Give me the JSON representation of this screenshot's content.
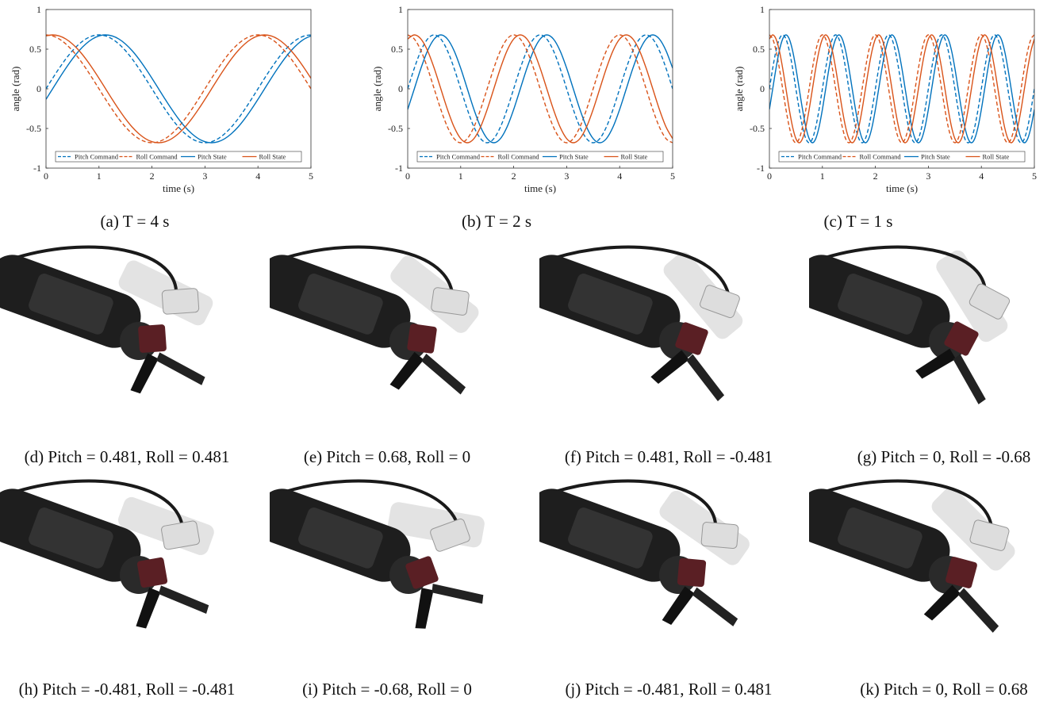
{
  "chart_data": [
    {
      "type": "line",
      "caption": "(a) T = 4 s",
      "xlabel": "time (s)",
      "ylabel": "angle (rad)",
      "xlim": [
        0,
        5
      ],
      "ylim": [
        -1,
        1
      ],
      "xticks": [
        0,
        1,
        2,
        3,
        4,
        5
      ],
      "yticks": [
        -1,
        -0.5,
        0,
        0.5,
        1
      ],
      "x": [
        0,
        0.125,
        0.25,
        0.375,
        0.5,
        0.625,
        0.75,
        0.875,
        1,
        1.125,
        1.25,
        1.375,
        1.5,
        1.625,
        1.75,
        1.875,
        2,
        2.125,
        2.25,
        2.375,
        2.5,
        2.625,
        2.75,
        2.875,
        3,
        3.125,
        3.25,
        3.375,
        3.5,
        3.625,
        3.75,
        3.875,
        4,
        4.125,
        4.25,
        4.375,
        4.5,
        4.625,
        4.75,
        4.875,
        5
      ],
      "series": [
        {
          "name": "Pitch Command",
          "color": "#0072bd",
          "dash": true,
          "values": [
            0,
            0.133,
            0.26,
            0.378,
            0.481,
            0.565,
            0.628,
            0.667,
            0.68,
            0.667,
            0.628,
            0.565,
            0.481,
            0.378,
            0.26,
            0.133,
            0,
            -0.133,
            -0.26,
            -0.378,
            -0.481,
            -0.565,
            -0.628,
            -0.667,
            -0.68,
            -0.667,
            -0.628,
            -0.565,
            -0.481,
            -0.378,
            -0.26,
            -0.133,
            0,
            0.133,
            0.26,
            0.378,
            0.481,
            0.565,
            0.628,
            0.667,
            0.68
          ]
        },
        {
          "name": "Roll Command",
          "color": "#d95319",
          "dash": true,
          "values": [
            0.68,
            0.667,
            0.628,
            0.565,
            0.481,
            0.378,
            0.26,
            0.133,
            0,
            -0.133,
            -0.26,
            -0.378,
            -0.481,
            -0.565,
            -0.628,
            -0.667,
            -0.68,
            -0.667,
            -0.628,
            -0.565,
            -0.481,
            -0.378,
            -0.26,
            -0.133,
            0,
            0.133,
            0.26,
            0.378,
            0.481,
            0.565,
            0.628,
            0.667,
            0.68,
            0.667,
            0.628,
            0.565,
            0.481,
            0.378,
            0.26,
            0.133,
            0
          ]
        },
        {
          "name": "Pitch State",
          "color": "#0072bd",
          "dash": false,
          "values": [
            -0.133,
            0,
            0.133,
            0.26,
            0.378,
            0.481,
            0.565,
            0.628,
            0.667,
            0.68,
            0.667,
            0.628,
            0.565,
            0.481,
            0.378,
            0.26,
            0.133,
            0,
            -0.133,
            -0.26,
            -0.378,
            -0.481,
            -0.565,
            -0.628,
            -0.667,
            -0.68,
            -0.667,
            -0.628,
            -0.565,
            -0.481,
            -0.378,
            -0.26,
            -0.133,
            0,
            0.133,
            0.26,
            0.378,
            0.481,
            0.565,
            0.628,
            0.667
          ]
        },
        {
          "name": "Roll State",
          "color": "#d95319",
          "dash": false,
          "values": [
            0.667,
            0.68,
            0.667,
            0.628,
            0.565,
            0.481,
            0.378,
            0.26,
            0.133,
            0,
            -0.133,
            -0.26,
            -0.378,
            -0.481,
            -0.565,
            -0.628,
            -0.667,
            -0.68,
            -0.667,
            -0.628,
            -0.565,
            -0.481,
            -0.378,
            -0.26,
            -0.133,
            0,
            0.133,
            0.26,
            0.378,
            0.481,
            0.565,
            0.628,
            0.667,
            0.68,
            0.667,
            0.628,
            0.565,
            0.481,
            0.378,
            0.26,
            0.133
          ]
        }
      ]
    },
    {
      "type": "line",
      "caption": "(b) T = 2 s",
      "xlabel": "time (s)",
      "ylabel": "angle (rad)",
      "xlim": [
        0,
        5
      ],
      "ylim": [
        -1,
        1
      ],
      "xticks": [
        0,
        1,
        2,
        3,
        4,
        5
      ],
      "yticks": [
        -1,
        -0.5,
        0,
        0.5,
        1
      ],
      "x": [
        0,
        0.125,
        0.25,
        0.375,
        0.5,
        0.625,
        0.75,
        0.875,
        1,
        1.125,
        1.25,
        1.375,
        1.5,
        1.625,
        1.75,
        1.875,
        2,
        2.125,
        2.25,
        2.375,
        2.5,
        2.625,
        2.75,
        2.875,
        3,
        3.125,
        3.25,
        3.375,
        3.5,
        3.625,
        3.75,
        3.875,
        4,
        4.125,
        4.25,
        4.375,
        4.5,
        4.625,
        4.75,
        4.875,
        5
      ],
      "series": [
        {
          "name": "Pitch Command",
          "color": "#0072bd",
          "dash": true,
          "values": [
            0,
            0.26,
            0.481,
            0.628,
            0.68,
            0.628,
            0.481,
            0.26,
            0,
            -0.26,
            -0.481,
            -0.628,
            -0.68,
            -0.628,
            -0.481,
            -0.26,
            0,
            0.26,
            0.481,
            0.628,
            0.68,
            0.628,
            0.481,
            0.26,
            0,
            -0.26,
            -0.481,
            -0.628,
            -0.68,
            -0.628,
            -0.481,
            -0.26,
            0,
            0.26,
            0.481,
            0.628,
            0.68,
            0.628,
            0.481,
            0.26,
            0
          ]
        },
        {
          "name": "Roll Command",
          "color": "#d95319",
          "dash": true,
          "values": [
            0.68,
            0.628,
            0.481,
            0.26,
            0,
            -0.26,
            -0.481,
            -0.628,
            -0.68,
            -0.628,
            -0.481,
            -0.26,
            0,
            0.26,
            0.481,
            0.628,
            0.68,
            0.628,
            0.481,
            0.26,
            0,
            -0.26,
            -0.481,
            -0.628,
            -0.68,
            -0.628,
            -0.481,
            -0.26,
            0,
            0.26,
            0.481,
            0.628,
            0.68,
            0.628,
            0.481,
            0.26,
            0,
            -0.26,
            -0.481,
            -0.628,
            -0.68
          ]
        },
        {
          "name": "Pitch State",
          "color": "#0072bd",
          "dash": false,
          "values": [
            -0.26,
            0,
            0.26,
            0.481,
            0.628,
            0.68,
            0.628,
            0.481,
            0.26,
            0,
            -0.26,
            -0.481,
            -0.628,
            -0.68,
            -0.628,
            -0.481,
            -0.26,
            0,
            0.26,
            0.481,
            0.628,
            0.68,
            0.628,
            0.481,
            0.26,
            0,
            -0.26,
            -0.481,
            -0.628,
            -0.68,
            -0.628,
            -0.481,
            -0.26,
            0,
            0.26,
            0.481,
            0.628,
            0.68,
            0.628,
            0.481,
            0.26
          ]
        },
        {
          "name": "Roll State",
          "color": "#d95319",
          "dash": false,
          "values": [
            0.628,
            0.68,
            0.628,
            0.481,
            0.26,
            0,
            -0.26,
            -0.481,
            -0.628,
            -0.68,
            -0.628,
            -0.481,
            -0.26,
            0,
            0.26,
            0.481,
            0.628,
            0.68,
            0.628,
            0.481,
            0.26,
            0,
            -0.26,
            -0.481,
            -0.628,
            -0.68,
            -0.628,
            -0.481,
            -0.26,
            0,
            0.26,
            0.481,
            0.628,
            0.68,
            0.628,
            0.481,
            0.26,
            0,
            -0.26,
            -0.481,
            -0.628
          ]
        }
      ]
    },
    {
      "type": "line",
      "caption": "(c) T = 1 s",
      "xlabel": "time (s)",
      "ylabel": "angle (rad)",
      "xlim": [
        0,
        5
      ],
      "ylim": [
        -1,
        1
      ],
      "xticks": [
        0,
        1,
        2,
        3,
        4,
        5
      ],
      "yticks": [
        -1,
        -0.5,
        0,
        0.5,
        1
      ],
      "x": [
        0,
        0.0625,
        0.125,
        0.1875,
        0.25,
        0.3125,
        0.375,
        0.4375,
        0.5,
        0.5625,
        0.625,
        0.6875,
        0.75,
        0.8125,
        0.875,
        0.9375,
        1,
        1.0625,
        1.125,
        1.1875,
        1.25,
        1.3125,
        1.375,
        1.4375,
        1.5,
        1.5625,
        1.625,
        1.6875,
        1.75,
        1.8125,
        1.875,
        1.9375,
        2,
        2.0625,
        2.125,
        2.1875,
        2.25,
        2.3125,
        2.375,
        2.4375,
        2.5,
        2.5625,
        2.625,
        2.6875,
        2.75,
        2.8125,
        2.875,
        2.9375,
        3,
        3.0625,
        3.125,
        3.1875,
        3.25,
        3.3125,
        3.375,
        3.4375,
        3.5,
        3.5625,
        3.625,
        3.6875,
        3.75,
        3.8125,
        3.875,
        3.9375,
        4,
        4.0625,
        4.125,
        4.1875,
        4.25,
        4.3125,
        4.375,
        4.4375,
        4.5,
        4.5625,
        4.625,
        4.6875,
        4.75,
        4.8125,
        4.875,
        4.9375,
        5
      ],
      "series": [
        {
          "name": "Pitch Command",
          "color": "#0072bd",
          "dash": true,
          "values": [
            0,
            0.26,
            0.481,
            0.628,
            0.68,
            0.628,
            0.481,
            0.26,
            0,
            -0.26,
            -0.481,
            -0.628,
            -0.68,
            -0.628,
            -0.481,
            -0.26,
            0,
            0.26,
            0.481,
            0.628,
            0.68,
            0.628,
            0.481,
            0.26,
            0,
            -0.26,
            -0.481,
            -0.628,
            -0.68,
            -0.628,
            -0.481,
            -0.26,
            0,
            0.26,
            0.481,
            0.628,
            0.68,
            0.628,
            0.481,
            0.26,
            0,
            -0.26,
            -0.481,
            -0.628,
            -0.68,
            -0.628,
            -0.481,
            -0.26,
            0,
            0.26,
            0.481,
            0.628,
            0.68,
            0.628,
            0.481,
            0.26,
            0,
            -0.26,
            -0.481,
            -0.628,
            -0.68,
            -0.628,
            -0.481,
            -0.26,
            0,
            0.26,
            0.481,
            0.628,
            0.68,
            0.628,
            0.481,
            0.26,
            0,
            -0.26,
            -0.481,
            -0.628,
            -0.68,
            -0.628,
            -0.481,
            -0.26,
            0
          ]
        },
        {
          "name": "Roll Command",
          "color": "#d95319",
          "dash": true,
          "values": [
            0.68,
            0.628,
            0.481,
            0.26,
            0,
            -0.26,
            -0.481,
            -0.628,
            -0.68,
            -0.628,
            -0.481,
            -0.26,
            0,
            0.26,
            0.481,
            0.628,
            0.68,
            0.628,
            0.481,
            0.26,
            0,
            -0.26,
            -0.481,
            -0.628,
            -0.68,
            -0.628,
            -0.481,
            -0.26,
            0,
            0.26,
            0.481,
            0.628,
            0.68,
            0.628,
            0.481,
            0.26,
            0,
            -0.26,
            -0.481,
            -0.628,
            -0.68,
            -0.628,
            -0.481,
            -0.26,
            0,
            0.26,
            0.481,
            0.628,
            0.68,
            0.628,
            0.481,
            0.26,
            0,
            -0.26,
            -0.481,
            -0.628,
            -0.68,
            -0.628,
            -0.481,
            -0.26,
            0,
            0.26,
            0.481,
            0.628,
            0.68,
            0.628,
            0.481,
            0.26,
            0,
            -0.26,
            -0.481,
            -0.628,
            -0.68,
            -0.628,
            -0.481,
            -0.26,
            0,
            0.26,
            0.481,
            0.628,
            0.68
          ]
        },
        {
          "name": "Pitch State",
          "color": "#0072bd",
          "dash": false,
          "values": [
            -0.26,
            0,
            0.26,
            0.481,
            0.628,
            0.68,
            0.628,
            0.481,
            0.26,
            0,
            -0.26,
            -0.481,
            -0.628,
            -0.68,
            -0.628,
            -0.481,
            -0.26,
            0,
            0.26,
            0.481,
            0.628,
            0.68,
            0.628,
            0.481,
            0.26,
            0,
            -0.26,
            -0.481,
            -0.628,
            -0.68,
            -0.628,
            -0.481,
            -0.26,
            0,
            0.26,
            0.481,
            0.628,
            0.68,
            0.628,
            0.481,
            0.26,
            0,
            -0.26,
            -0.481,
            -0.628,
            -0.68,
            -0.628,
            -0.481,
            -0.26,
            0,
            0.26,
            0.481,
            0.628,
            0.68,
            0.628,
            0.481,
            0.26,
            0,
            -0.26,
            -0.481,
            -0.628,
            -0.68,
            -0.628,
            -0.481,
            -0.26,
            0,
            0.26,
            0.481,
            0.628,
            0.68,
            0.628,
            0.481,
            0.26,
            0,
            -0.26,
            -0.481,
            -0.628,
            -0.68,
            -0.628,
            -0.481,
            -0.26
          ]
        },
        {
          "name": "Roll State",
          "color": "#d95319",
          "dash": false,
          "values": [
            0.628,
            0.68,
            0.628,
            0.481,
            0.26,
            0,
            -0.26,
            -0.481,
            -0.628,
            -0.68,
            -0.628,
            -0.481,
            -0.26,
            0,
            0.26,
            0.481,
            0.628,
            0.68,
            0.628,
            0.481,
            0.26,
            0,
            -0.26,
            -0.481,
            -0.628,
            -0.68,
            -0.628,
            -0.481,
            -0.26,
            0,
            0.26,
            0.481,
            0.628,
            0.68,
            0.628,
            0.481,
            0.26,
            0,
            -0.26,
            -0.481,
            -0.628,
            -0.68,
            -0.628,
            -0.481,
            -0.26,
            0,
            0.26,
            0.481,
            0.628,
            0.68,
            0.628,
            0.481,
            0.26,
            0,
            -0.26,
            -0.481,
            -0.628,
            -0.68,
            -0.628,
            -0.481,
            -0.26,
            0,
            0.26,
            0.481,
            0.628,
            0.68,
            0.628,
            0.481,
            0.26,
            0,
            -0.26,
            -0.481,
            -0.628,
            -0.68,
            -0.628,
            -0.481,
            -0.26,
            0,
            0.26,
            0.481,
            0.628
          ]
        }
      ]
    }
  ],
  "photos": [
    {
      "caption": "(d) Pitch = 0.481, Roll = 0.481"
    },
    {
      "caption": "(e) Pitch = 0.68, Roll = 0"
    },
    {
      "caption": "(f) Pitch = 0.481, Roll = -0.481"
    },
    {
      "caption": "(g) Pitch = 0, Roll = -0.68"
    },
    {
      "caption": "(h) Pitch = -0.481, Roll = -0.481"
    },
    {
      "caption": "(i) Pitch = -0.68, Roll = 0"
    },
    {
      "caption": "(j) Pitch = -0.481, Roll = 0.481"
    },
    {
      "caption": "(k) Pitch = 0, Roll = 0.68"
    }
  ]
}
